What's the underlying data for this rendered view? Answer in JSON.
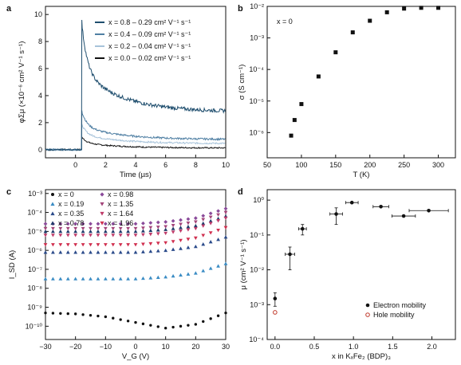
{
  "chart_data": [
    {
      "panel": "a",
      "type": "line",
      "xlabel": "Time (µs)",
      "ylabel": "φΣμ (×10⁻⁶ cm² V⁻¹ s⁻¹)",
      "xlim": [
        -2,
        10
      ],
      "ylim": [
        -0.6,
        10.6
      ],
      "xticks": [
        "0",
        "2",
        "4",
        "6",
        "8",
        "10"
      ],
      "yticks": [
        "0",
        "2",
        "4",
        "6",
        "8",
        "10"
      ],
      "pulse_time": 0.4,
      "series": [
        {
          "name": "x = 0.8 – 0.29 cm² V⁻¹ s⁻¹",
          "color": "#1f4e6e",
          "peak": 9.6,
          "plateau": 2.8,
          "x": [
            0.4,
            1,
            2,
            4,
            6,
            8,
            10
          ],
          "values": [
            9.6,
            6.3,
            4.4,
            3.5,
            3.2,
            3.0,
            2.8
          ]
        },
        {
          "name": "x = 0.4 – 0.09 cm² V⁻¹ s⁻¹",
          "color": "#4f7fa3",
          "peak": 2.9,
          "plateau": 0.75,
          "x": [
            0.4,
            1,
            2,
            4,
            6,
            8,
            10
          ],
          "values": [
            2.9,
            1.5,
            1.05,
            0.88,
            0.82,
            0.78,
            0.75
          ]
        },
        {
          "name": "x = 0.2 – 0.04 cm² V⁻¹ s⁻¹",
          "color": "#a7c3da",
          "peak": 1.9,
          "plateau": 0.45,
          "x": [
            0.4,
            1,
            2,
            4,
            6,
            8,
            10
          ],
          "values": [
            1.9,
            1.0,
            0.7,
            0.55,
            0.5,
            0.47,
            0.45
          ]
        },
        {
          "name": "x = 0.0 – 0.02 cm² V⁻¹ s⁻¹",
          "color": "#111111",
          "peak": 0.95,
          "plateau": 0.12,
          "x": [
            0.4,
            1,
            2,
            4,
            6,
            8,
            10
          ],
          "values": [
            0.95,
            0.45,
            0.3,
            0.2,
            0.16,
            0.14,
            0.12
          ]
        }
      ]
    },
    {
      "panel": "b",
      "type": "scatter",
      "annotation": "x = 0",
      "xlabel": "T (K)",
      "ylabel": "σ (S cm⁻¹)",
      "xlim": [
        50,
        325
      ],
      "ylim_log10": [
        -6.8,
        -2
      ],
      "xticks": [
        "50",
        "100",
        "150",
        "200",
        "250",
        "300"
      ],
      "yticks": [
        "10⁻⁶",
        "10⁻⁵",
        "10⁻⁴",
        "10⁻³",
        "10⁻²"
      ],
      "x": [
        85,
        90,
        100,
        125,
        150,
        175,
        200,
        225,
        250,
        275,
        300
      ],
      "values": [
        8e-07,
        2.5e-06,
        8e-06,
        6e-05,
        0.00035,
        0.0015,
        0.0035,
        0.0065,
        0.0085,
        0.009,
        0.009
      ]
    },
    {
      "panel": "c",
      "type": "scatter",
      "xlabel": "V_G (V)",
      "ylabel": "I_SD (A)",
      "xlim": [
        -30,
        30
      ],
      "ylim_log10": [
        -10.7,
        -2.8
      ],
      "xticks": [
        "−30",
        "−20",
        "−10",
        "0",
        "10",
        "20",
        "30"
      ],
      "yticks": [
        "10⁻¹⁰",
        "10⁻⁹",
        "10⁻⁸",
        "10⁻⁷",
        "10⁻⁶",
        "10⁻⁵",
        "10⁻⁴",
        "10⁻³"
      ],
      "x": [
        -30,
        -20,
        -10,
        0,
        10,
        20,
        30
      ],
      "series": [
        {
          "name": "x = 0",
          "marker": "circle",
          "color": "#111111",
          "log10_values": [
            -9.3,
            -9.35,
            -9.5,
            -9.8,
            -10.1,
            -9.9,
            -9.3
          ]
        },
        {
          "name": "x = 0.19",
          "marker": "triangle-up",
          "color": "#3a8cc4",
          "log10_values": [
            -7.5,
            -7.5,
            -7.5,
            -7.5,
            -7.4,
            -7.2,
            -6.7
          ]
        },
        {
          "name": "x = 0.35",
          "marker": "triangle-up",
          "color": "#2a4a8a",
          "log10_values": [
            -6.1,
            -6.1,
            -6.1,
            -6.1,
            -6.0,
            -5.8,
            -5.3
          ]
        },
        {
          "name": "x = 0.78",
          "marker": "triangle-up",
          "color": "#1f3a6a",
          "log10_values": [
            -5.0,
            -5.0,
            -5.0,
            -5.0,
            -4.9,
            -4.7,
            -4.2
          ]
        },
        {
          "name": "x = 0.98",
          "marker": "diamond",
          "color": "#8a4a9a",
          "log10_values": [
            -4.6,
            -4.6,
            -4.6,
            -4.6,
            -4.5,
            -4.3,
            -3.8
          ]
        },
        {
          "name": "x = 1.35",
          "marker": "triangle-down",
          "color": "#a3457a",
          "log10_values": [
            -4.85,
            -4.85,
            -4.85,
            -4.85,
            -4.75,
            -4.5,
            -4.0
          ]
        },
        {
          "name": "x = 1.64",
          "marker": "triangle-down",
          "color": "#c03c6a",
          "log10_values": [
            -5.2,
            -5.2,
            -5.2,
            -5.2,
            -5.1,
            -4.85,
            -4.3
          ]
        },
        {
          "name": "x = 1.96",
          "marker": "triangle-down",
          "color": "#d02f4f",
          "log10_values": [
            -5.7,
            -5.7,
            -5.7,
            -5.7,
            -5.6,
            -5.35,
            -4.8
          ]
        }
      ]
    },
    {
      "panel": "d",
      "type": "scatter",
      "xlabel": "x in KₓFe₂ (BDP)₃",
      "ylabel": "μ (cm² V⁻¹ s⁻¹)",
      "xlim": [
        -0.1,
        2.3
      ],
      "ylim_log10": [
        -4,
        0.3
      ],
      "xticks": [
        "0.0",
        "0.5",
        "1.0",
        "1.5",
        "2.0"
      ],
      "yticks": [
        "10⁻⁴",
        "10⁻³",
        "10⁻²",
        "10⁻¹",
        "10⁰"
      ],
      "series": [
        {
          "name": "Electron mobility",
          "marker": "circle",
          "color": "#111111",
          "points": [
            {
              "x": 0.0,
              "y": 0.0015,
              "xerr": 0,
              "ylo": 0.0009,
              "yhi": 0.0022
            },
            {
              "x": 0.19,
              "y": 0.028,
              "xerr": 0.06,
              "ylo": 0.01,
              "yhi": 0.045
            },
            {
              "x": 0.35,
              "y": 0.15,
              "xerr": 0.05,
              "ylo": 0.1,
              "yhi": 0.2
            },
            {
              "x": 0.78,
              "y": 0.4,
              "xerr": 0.08,
              "ylo": 0.2,
              "yhi": 0.6
            },
            {
              "x": 0.98,
              "y": 0.85,
              "xerr": 0.08,
              "ylo": 0.85,
              "yhi": 0.85
            },
            {
              "x": 1.35,
              "y": 0.65,
              "xerr": 0.1,
              "ylo": 0.65,
              "yhi": 0.65
            },
            {
              "x": 1.64,
              "y": 0.35,
              "xerr": 0.15,
              "ylo": 0.35,
              "yhi": 0.35
            },
            {
              "x": 1.96,
              "y": 0.5,
              "xerr": 0.25,
              "ylo": 0.5,
              "yhi": 0.5
            }
          ]
        },
        {
          "name": "Hole mobility",
          "marker": "open-circle",
          "color": "#c0392b",
          "points": [
            {
              "x": 0.0,
              "y": 0.0006,
              "xerr": 0,
              "ylo": 0.0006,
              "yhi": 0.0006
            }
          ]
        }
      ]
    }
  ]
}
